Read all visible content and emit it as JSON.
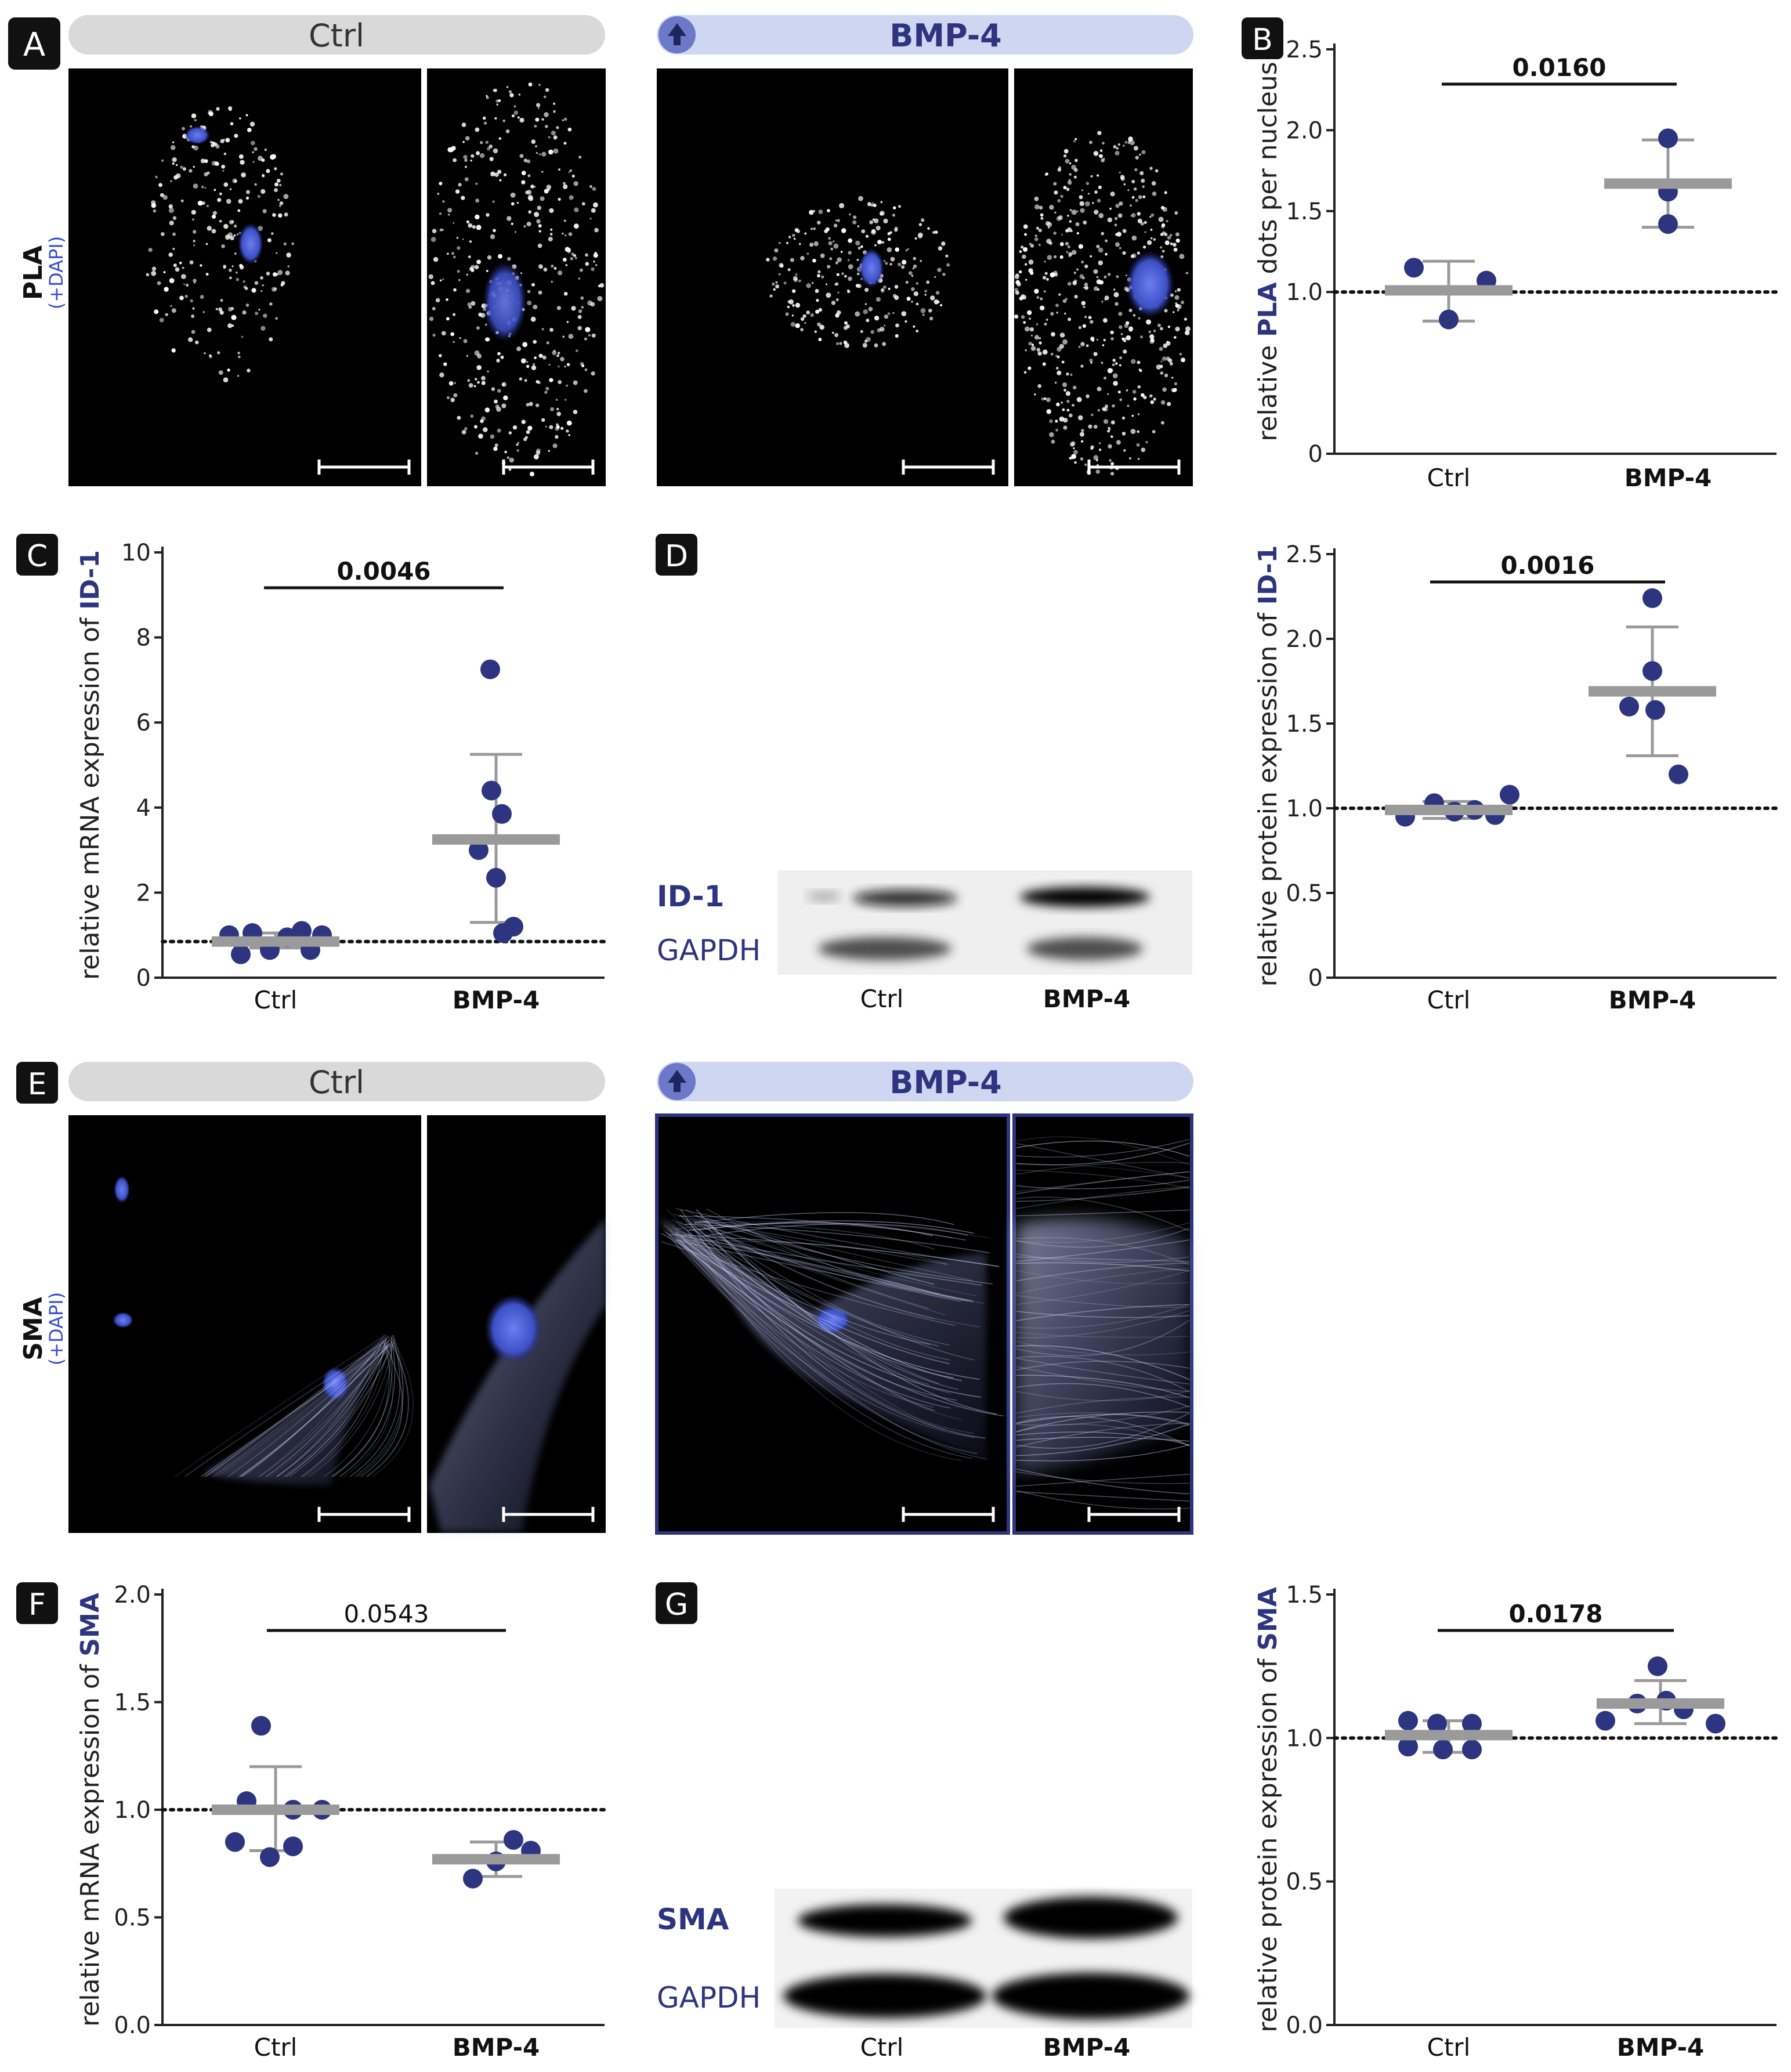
{
  "colors": {
    "navy": "#2d3580",
    "gray_bar": "#9a9a9a",
    "pill_gray": "#d9d9d9",
    "pill_blue": "#cfd6f1",
    "dapi_blue": "#4a5fd8"
  },
  "panels": {
    "a": {
      "letter": "A",
      "ctrl_label": "Ctrl",
      "bmp_label": "BMP-4",
      "side_main": "PLA",
      "side_sub": "(+DAPI)"
    },
    "b": {
      "letter": "B"
    },
    "c": {
      "letter": "C"
    },
    "d": {
      "letter": "D",
      "blot_target": "ID-1",
      "blot_ref": "GAPDH",
      "lane1": "Ctrl",
      "lane2": "BMP-4"
    },
    "e": {
      "letter": "E",
      "ctrl_label": "Ctrl",
      "bmp_label": "BMP-4",
      "side_main": "SMA",
      "side_sub": "(+DAPI)"
    },
    "f": {
      "letter": "F"
    },
    "g": {
      "letter": "G",
      "blot_target": "SMA",
      "blot_ref": "GAPDH",
      "lane1": "Ctrl",
      "lane2": "BMP-4"
    }
  },
  "icons": {
    "up_arrow": "arrow-up-icon"
  },
  "chart_data": [
    {
      "id": "B",
      "type": "scatter",
      "ylabel_pre": "relative ",
      "ylabel_em": "PLA",
      "ylabel_post": " dots per nucleus",
      "categories": [
        "Ctrl",
        "BMP-4"
      ],
      "ylim": [
        0,
        2.5
      ],
      "yticks": [
        "0",
        "1.0",
        "1.5",
        "2.0",
        "2.5"
      ],
      "yticks_values": [
        0,
        1.0,
        1.5,
        2.0,
        2.5
      ],
      "reference_line": 1.0,
      "pvalue": "0.0160",
      "pvalue_bold": true,
      "series": [
        {
          "name": "Ctrl",
          "points": [
            1.15,
            1.07,
            0.83
          ],
          "mean": 1.01,
          "sd": [
            0.82,
            1.19
          ]
        },
        {
          "name": "BMP-4",
          "points": [
            1.95,
            1.62,
            1.42
          ],
          "mean": 1.67,
          "sd": [
            1.4,
            1.94
          ]
        }
      ]
    },
    {
      "id": "C",
      "type": "scatter",
      "ylabel_pre": "relative mRNA expression of ",
      "ylabel_em": "ID-1",
      "ylabel_post": "",
      "categories": [
        "Ctrl",
        "BMP-4"
      ],
      "ylim": [
        0,
        10
      ],
      "yticks": [
        "0",
        "2",
        "4",
        "6",
        "8",
        "10"
      ],
      "yticks_values": [
        0,
        2,
        4,
        6,
        8,
        10
      ],
      "reference_line": 0.85,
      "pvalue": "0.0046",
      "pvalue_bold": true,
      "series": [
        {
          "name": "Ctrl",
          "points": [
            1.0,
            1.05,
            0.55,
            0.65,
            0.95,
            1.1,
            1.0,
            0.65
          ],
          "mean": 0.85,
          "sd": [
            0.7,
            1.05
          ]
        },
        {
          "name": "BMP-4",
          "points": [
            7.25,
            4.4,
            3.85,
            3.0,
            2.35,
            1.2,
            1.05
          ],
          "mean": 3.25,
          "sd": [
            1.3,
            5.25
          ]
        }
      ]
    },
    {
      "id": "D",
      "type": "scatter",
      "ylabel_pre": "relative protein expression of ",
      "ylabel_em": "ID-1",
      "ylabel_post": "",
      "categories": [
        "Ctrl",
        "BMP-4"
      ],
      "ylim": [
        0,
        2.5
      ],
      "yticks": [
        "0",
        "0.5",
        "1.0",
        "1.5",
        "2.0",
        "2.5"
      ],
      "yticks_values": [
        0,
        0.5,
        1.0,
        1.5,
        2.0,
        2.5
      ],
      "reference_line": 1.0,
      "pvalue": "0.0016",
      "pvalue_bold": true,
      "series": [
        {
          "name": "Ctrl",
          "points": [
            0.95,
            1.03,
            0.98,
            0.99,
            0.96,
            1.08
          ],
          "mean": 0.99,
          "sd": [
            0.94,
            1.04
          ]
        },
        {
          "name": "BMP-4",
          "points": [
            2.24,
            1.81,
            1.6,
            1.58,
            1.2
          ],
          "mean": 1.69,
          "sd": [
            1.31,
            2.07
          ]
        }
      ]
    },
    {
      "id": "F",
      "type": "scatter",
      "ylabel_pre": "relative mRNA expression of ",
      "ylabel_em": "SMA",
      "ylabel_post": "",
      "categories": [
        "Ctrl",
        "BMP-4"
      ],
      "ylim": [
        0,
        2.0
      ],
      "yticks": [
        "0.0",
        "0.5",
        "1.0",
        "1.5",
        "2.0"
      ],
      "yticks_values": [
        0,
        0.5,
        1.0,
        1.5,
        2.0
      ],
      "reference_line": 1.0,
      "pvalue": "0.0543",
      "pvalue_bold": false,
      "series": [
        {
          "name": "Ctrl",
          "points": [
            1.39,
            1.04,
            1.0,
            1.0,
            0.85,
            0.83,
            0.78
          ],
          "mean": 1.0,
          "sd": [
            0.81,
            1.2
          ]
        },
        {
          "name": "BMP-4",
          "points": [
            0.86,
            0.81,
            0.76,
            0.68
          ],
          "mean": 0.77,
          "sd": [
            0.69,
            0.85
          ]
        }
      ]
    },
    {
      "id": "G",
      "type": "scatter",
      "ylabel_pre": "relative protein expression of ",
      "ylabel_em": "SMA",
      "ylabel_post": "",
      "categories": [
        "Ctrl",
        "BMP-4"
      ],
      "ylim": [
        0,
        1.5
      ],
      "yticks": [
        "0.0",
        "0.5",
        "1.0",
        "1.5"
      ],
      "yticks_values": [
        0,
        0.5,
        1.0,
        1.5
      ],
      "reference_line": 1.0,
      "pvalue": "0.0178",
      "pvalue_bold": true,
      "series": [
        {
          "name": "Ctrl",
          "points": [
            1.06,
            1.05,
            1.05,
            0.97,
            0.96,
            0.96
          ],
          "mean": 1.01,
          "sd": [
            0.95,
            1.06
          ]
        },
        {
          "name": "BMP-4",
          "points": [
            1.25,
            1.13,
            1.12,
            1.1,
            1.06,
            1.05
          ],
          "mean": 1.12,
          "sd": [
            1.05,
            1.2
          ]
        }
      ]
    }
  ]
}
